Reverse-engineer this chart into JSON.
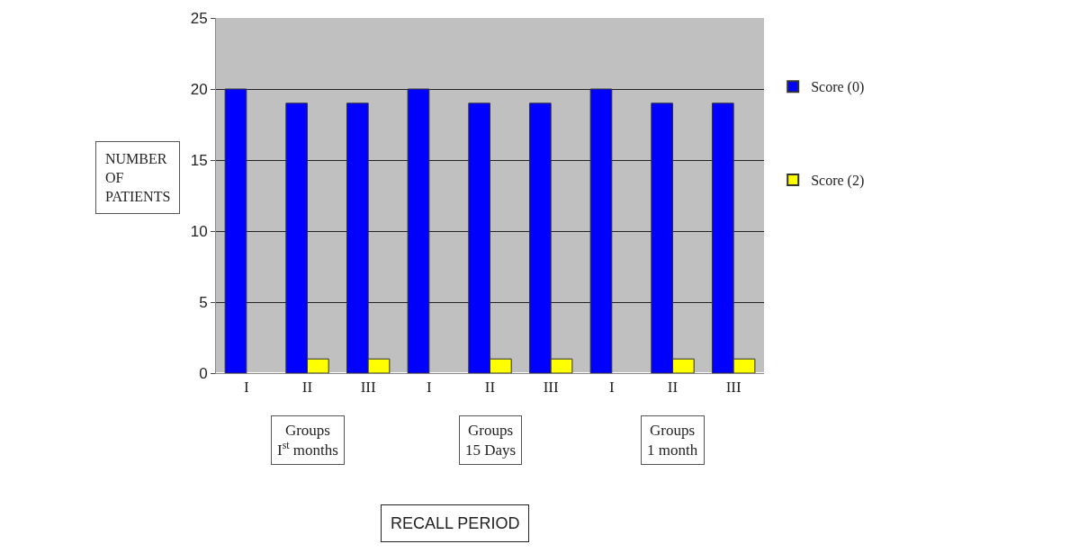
{
  "chart_data": {
    "type": "bar",
    "ylabel": "NUMBER OF PATIENTS",
    "categories": [
      "I",
      "II",
      "III",
      "I",
      "II",
      "III",
      "I",
      "II",
      "III"
    ],
    "series": [
      {
        "name": "Score (0)",
        "color": "#0000ff",
        "values": [
          20,
          19,
          19,
          20,
          19,
          19,
          20,
          19,
          19
        ]
      },
      {
        "name": "Score (2)",
        "color": "#ffff00",
        "values": [
          null,
          1,
          1,
          null,
          1,
          1,
          null,
          1,
          1
        ]
      }
    ],
    "annotations": [
      "Groups\nI$^{st}$ months",
      "Groups\n15 Days",
      "Groups\n1 month",
      "RECALL PERIOD"
    ],
    "ylim": [
      0,
      25
    ],
    "yticks": [
      0,
      5,
      10,
      15,
      20,
      25
    ],
    "grid": "y",
    "legend": "right"
  }
}
